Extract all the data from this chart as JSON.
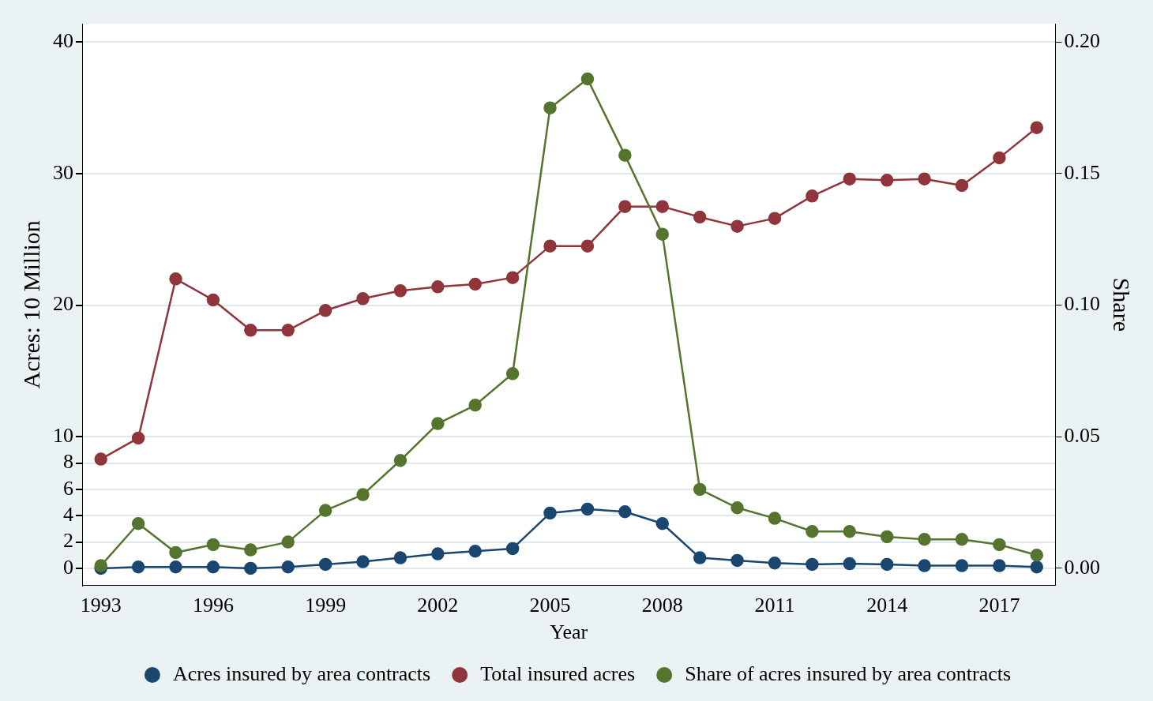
{
  "chart_data": {
    "type": "line",
    "xlabel": "Year",
    "ylabel": "Acres: 10 Million",
    "y2label": "Share",
    "x": [
      1993,
      1994,
      1995,
      1996,
      1997,
      1998,
      1999,
      2000,
      2001,
      2002,
      2003,
      2004,
      2005,
      2006,
      2007,
      2008,
      2009,
      2010,
      2011,
      2012,
      2013,
      2014,
      2015,
      2016,
      2017,
      2018
    ],
    "series": [
      {
        "name": "Acres insured by area contracts",
        "color": "#1a476f",
        "values": [
          0,
          0.1,
          0.1,
          0.1,
          0,
          0.1,
          0.3,
          0.5,
          0.8,
          1.1,
          1.3,
          1.5,
          4.2,
          4.5,
          4.3,
          3.4,
          0.8,
          0.6,
          0.4,
          0.3,
          0.35,
          0.3,
          0.2,
          0.2,
          0.2,
          0.1
        ]
      },
      {
        "name": "Total insured acres",
        "color": "#90353b",
        "values": [
          8.3,
          9.9,
          22,
          20.4,
          18.1,
          18.1,
          19.6,
          20.5,
          21.1,
          21.4,
          21.6,
          22.1,
          24.5,
          24.5,
          27.5,
          27.5,
          26.7,
          26,
          26.6,
          28.3,
          29.6,
          29.5,
          29.6,
          29.1,
          31.2,
          33.5
        ]
      },
      {
        "name": "Share of acres insured by area contracts",
        "color": "#55752f",
        "axis": "y2",
        "values": [
          0.001,
          0.017,
          0.006,
          0.009,
          0.007,
          0.01,
          0.022,
          0.028,
          0.041,
          0.055,
          0.062,
          0.074,
          0.175,
          0.186,
          0.157,
          0.127,
          0.03,
          0.023,
          0.019,
          0.014,
          0.014,
          0.012,
          0.011,
          0.011,
          0.009,
          0.005
        ]
      }
    ],
    "xlim": [
      1992.5,
      2018.5
    ],
    "xticks": [
      1993,
      1996,
      1999,
      2002,
      2005,
      2008,
      2011,
      2014,
      2017
    ],
    "ylim": [
      -1.3,
      41.4
    ],
    "yticks": [
      0,
      2,
      4,
      6,
      8,
      10,
      20,
      30,
      40
    ],
    "y2lim": [
      -0.0065,
      0.207
    ],
    "y2ticks": [
      {
        "value": 0,
        "label": "0.00"
      },
      {
        "value": 0.05,
        "label": "0.05"
      },
      {
        "value": 0.1,
        "label": "0.10"
      },
      {
        "value": 0.15,
        "label": "0.15"
      },
      {
        "value": 0.2,
        "label": "0.20"
      }
    ],
    "grid": "y",
    "legend": "bottom",
    "marker": "circle",
    "line_style": "solid"
  }
}
